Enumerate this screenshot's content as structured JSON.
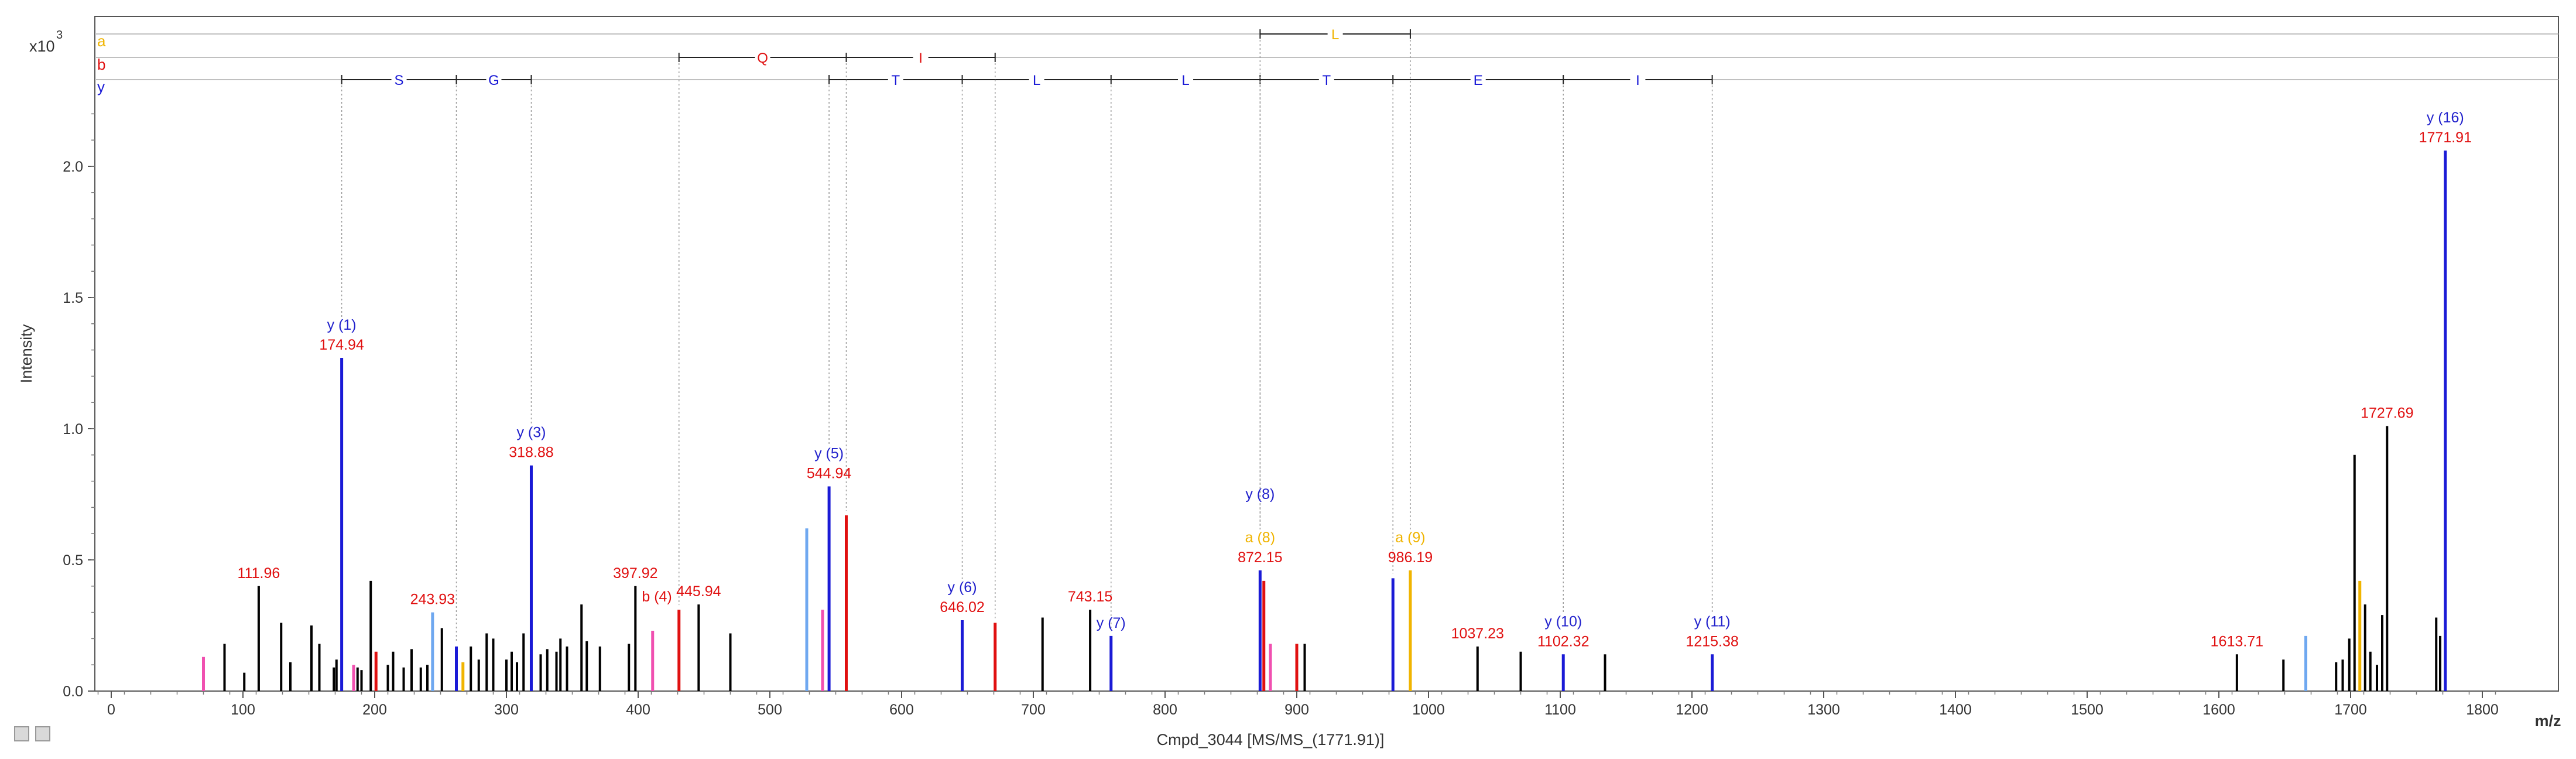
{
  "chart_data": {
    "type": "bar",
    "ylabel": "Intensity",
    "xlabel": "m/z",
    "y_multiplier_label": "x10",
    "y_multiplier_exponent": "3",
    "caption": "Cmpd_3044 [MS/MS_(1771.91)]",
    "xlim": [
      -12,
      1830
    ],
    "ylim": [
      0,
      2.5
    ],
    "x_ticks": [
      0,
      100,
      200,
      300,
      400,
      500,
      600,
      700,
      800,
      900,
      1000,
      1100,
      1200,
      1300,
      1400,
      1500,
      1600,
      1700,
      1800
    ],
    "y_ticks": [
      0.0,
      0.5,
      1.0,
      1.5,
      2.0
    ],
    "y_tick_labels": [
      "0.0",
      "0.5",
      "1.0",
      "1.5",
      "2.0"
    ],
    "colors": {
      "y_ion": "#1a1ad6",
      "b_ion": "#e01010",
      "a_ion": "#f0b400",
      "label_red": "#e01010",
      "other": "#000000",
      "pink": "#f050b0",
      "light_blue": "#6fa8f0",
      "grid": "#c0c0c0"
    },
    "ion_series_rows": [
      {
        "letter": "a",
        "color": "#f0b400"
      },
      {
        "letter": "b",
        "color": "#e01010"
      },
      {
        "letter": "y",
        "color": "#1a1ad6"
      }
    ],
    "sequence_ladders": [
      {
        "row": "a",
        "color": "#f0b400",
        "breaks": [
          872.15,
          986.19
        ],
        "residues": [
          "L"
        ]
      },
      {
        "row": "b",
        "color": "#e01010",
        "breaks": [
          431,
          558,
          671
        ],
        "residues": [
          "Q",
          "I"
        ]
      },
      {
        "row": "y",
        "color": "#1a1ad6",
        "breaks": [
          174.94,
          262,
          318.88
        ],
        "residues": [
          "S",
          "G"
        ]
      },
      {
        "row": "y",
        "color": "#1a1ad6",
        "breaks": [
          544.94,
          646.02,
          759,
          872.15,
          973,
          1102.32,
          1215.38
        ],
        "residues": [
          "T",
          "L",
          "L",
          "T",
          "E",
          "I"
        ]
      }
    ],
    "peaks": [
      {
        "mz": 70,
        "intensity": 0.13,
        "color": "#f050b0"
      },
      {
        "mz": 86,
        "intensity": 0.18,
        "color": "#000000"
      },
      {
        "mz": 101,
        "intensity": 0.07,
        "color": "#000000"
      },
      {
        "mz": 111.96,
        "intensity": 0.4,
        "color": "#000000",
        "label": "111.96",
        "label_color": "#e01010"
      },
      {
        "mz": 129,
        "intensity": 0.26,
        "color": "#000000"
      },
      {
        "mz": 136,
        "intensity": 0.11,
        "color": "#000000"
      },
      {
        "mz": 152,
        "intensity": 0.25,
        "color": "#000000"
      },
      {
        "mz": 158,
        "intensity": 0.18,
        "color": "#000000"
      },
      {
        "mz": 169,
        "intensity": 0.09,
        "color": "#000000"
      },
      {
        "mz": 171,
        "intensity": 0.12,
        "color": "#000000"
      },
      {
        "mz": 174.94,
        "intensity": 1.27,
        "color": "#1a1ad6",
        "label": "174.94",
        "label_color": "#e01010",
        "ion": "y (1)"
      },
      {
        "mz": 184,
        "intensity": 0.1,
        "color": "#f050b0"
      },
      {
        "mz": 187,
        "intensity": 0.09,
        "color": "#000000"
      },
      {
        "mz": 190,
        "intensity": 0.08,
        "color": "#000000"
      },
      {
        "mz": 197,
        "intensity": 0.42,
        "color": "#000000"
      },
      {
        "mz": 201,
        "intensity": 0.15,
        "color": "#e01010"
      },
      {
        "mz": 210,
        "intensity": 0.1,
        "color": "#000000"
      },
      {
        "mz": 214,
        "intensity": 0.15,
        "color": "#000000"
      },
      {
        "mz": 222,
        "intensity": 0.09,
        "color": "#000000"
      },
      {
        "mz": 228,
        "intensity": 0.16,
        "color": "#000000"
      },
      {
        "mz": 235,
        "intensity": 0.09,
        "color": "#000000"
      },
      {
        "mz": 240,
        "intensity": 0.1,
        "color": "#000000"
      },
      {
        "mz": 243.93,
        "intensity": 0.3,
        "color": "#6fa8f0",
        "label": "243.93",
        "label_color": "#e01010"
      },
      {
        "mz": 251,
        "intensity": 0.24,
        "color": "#000000"
      },
      {
        "mz": 262,
        "intensity": 0.17,
        "color": "#1a1ad6"
      },
      {
        "mz": 267,
        "intensity": 0.11,
        "color": "#f0b400"
      },
      {
        "mz": 273,
        "intensity": 0.17,
        "color": "#000000"
      },
      {
        "mz": 279,
        "intensity": 0.12,
        "color": "#000000"
      },
      {
        "mz": 285,
        "intensity": 0.22,
        "color": "#000000"
      },
      {
        "mz": 290,
        "intensity": 0.2,
        "color": "#000000"
      },
      {
        "mz": 300,
        "intensity": 0.12,
        "color": "#000000"
      },
      {
        "mz": 304,
        "intensity": 0.15,
        "color": "#000000"
      },
      {
        "mz": 308,
        "intensity": 0.11,
        "color": "#000000"
      },
      {
        "mz": 313,
        "intensity": 0.22,
        "color": "#000000"
      },
      {
        "mz": 318.88,
        "intensity": 0.86,
        "color": "#1a1ad6",
        "label": "318.88",
        "label_color": "#e01010",
        "ion": "y (3)"
      },
      {
        "mz": 326,
        "intensity": 0.14,
        "color": "#000000"
      },
      {
        "mz": 331,
        "intensity": 0.16,
        "color": "#000000"
      },
      {
        "mz": 338,
        "intensity": 0.15,
        "color": "#000000"
      },
      {
        "mz": 341,
        "intensity": 0.2,
        "color": "#000000"
      },
      {
        "mz": 346,
        "intensity": 0.17,
        "color": "#000000"
      },
      {
        "mz": 357,
        "intensity": 0.33,
        "color": "#000000"
      },
      {
        "mz": 361,
        "intensity": 0.19,
        "color": "#000000"
      },
      {
        "mz": 371,
        "intensity": 0.17,
        "color": "#000000"
      },
      {
        "mz": 393,
        "intensity": 0.18,
        "color": "#000000"
      },
      {
        "mz": 397.92,
        "intensity": 0.4,
        "color": "#000000",
        "label": "397.92",
        "label_color": "#e01010"
      },
      {
        "mz": 411,
        "intensity": 0.23,
        "color": "#f050b0"
      },
      {
        "mz": 431,
        "intensity": 0.31,
        "color": "#e01010",
        "ion": "b (4)",
        "ion_color": "#e01010"
      },
      {
        "mz": 445.94,
        "intensity": 0.33,
        "color": "#000000",
        "label": "445.94",
        "label_color": "#e01010"
      },
      {
        "mz": 470,
        "intensity": 0.22,
        "color": "#000000"
      },
      {
        "mz": 528,
        "intensity": 0.62,
        "color": "#6fa8f0"
      },
      {
        "mz": 540,
        "intensity": 0.31,
        "color": "#f050b0"
      },
      {
        "mz": 544.94,
        "intensity": 0.78,
        "color": "#1a1ad6",
        "label": "544.94",
        "label_color": "#e01010",
        "ion": "y (5)"
      },
      {
        "mz": 558,
        "intensity": 0.67,
        "color": "#e01010"
      },
      {
        "mz": 646.02,
        "intensity": 0.27,
        "color": "#1a1ad6",
        "label": "646.02",
        "label_color": "#e01010",
        "ion": "y (6)"
      },
      {
        "mz": 671,
        "intensity": 0.26,
        "color": "#e01010"
      },
      {
        "mz": 707,
        "intensity": 0.28,
        "color": "#000000"
      },
      {
        "mz": 743.15,
        "intensity": 0.31,
        "color": "#000000",
        "label": "743.15",
        "label_color": "#e01010"
      },
      {
        "mz": 759,
        "intensity": 0.21,
        "color": "#1a1ad6",
        "ion": "y (7)"
      },
      {
        "mz": 872.15,
        "intensity": 0.46,
        "color": "#1a1ad6",
        "label": "872.15",
        "label_color": "#e01010",
        "ion": "y (8)",
        "ion2": "a (8)",
        "ion2_color": "#f0b400"
      },
      {
        "mz": 875,
        "intensity": 0.42,
        "color": "#e01010"
      },
      {
        "mz": 880,
        "intensity": 0.18,
        "color": "#f050b0"
      },
      {
        "mz": 900,
        "intensity": 0.18,
        "color": "#e01010"
      },
      {
        "mz": 906,
        "intensity": 0.18,
        "color": "#000000"
      },
      {
        "mz": 973,
        "intensity": 0.43,
        "color": "#1a1ad6"
      },
      {
        "mz": 986.19,
        "intensity": 0.46,
        "color": "#f0b400",
        "label": "986.19",
        "label_color": "#e01010",
        "ion2": "a (9)",
        "ion2_color": "#f0b400"
      },
      {
        "mz": 1037.23,
        "intensity": 0.17,
        "color": "#000000",
        "label": "1037.23",
        "label_color": "#e01010"
      },
      {
        "mz": 1070,
        "intensity": 0.15,
        "color": "#000000"
      },
      {
        "mz": 1102.32,
        "intensity": 0.14,
        "color": "#1a1ad6",
        "label": "1102.32",
        "label_color": "#e01010",
        "ion": "y (10)"
      },
      {
        "mz": 1134,
        "intensity": 0.14,
        "color": "#000000"
      },
      {
        "mz": 1215.38,
        "intensity": 0.14,
        "color": "#1a1ad6",
        "label": "1215.38",
        "label_color": "#e01010",
        "ion": "y (11)"
      },
      {
        "mz": 1613.71,
        "intensity": 0.14,
        "color": "#000000",
        "label": "1613.71",
        "label_color": "#e01010"
      },
      {
        "mz": 1649,
        "intensity": 0.12,
        "color": "#000000"
      },
      {
        "mz": 1666,
        "intensity": 0.21,
        "color": "#6fa8f0"
      },
      {
        "mz": 1689,
        "intensity": 0.11,
        "color": "#000000"
      },
      {
        "mz": 1694,
        "intensity": 0.12,
        "color": "#000000"
      },
      {
        "mz": 1699,
        "intensity": 0.2,
        "color": "#000000"
      },
      {
        "mz": 1703,
        "intensity": 0.9,
        "color": "#000000"
      },
      {
        "mz": 1707,
        "intensity": 0.42,
        "color": "#f0b400"
      },
      {
        "mz": 1711,
        "intensity": 0.33,
        "color": "#000000"
      },
      {
        "mz": 1715,
        "intensity": 0.15,
        "color": "#000000"
      },
      {
        "mz": 1720,
        "intensity": 0.1,
        "color": "#000000"
      },
      {
        "mz": 1724,
        "intensity": 0.29,
        "color": "#000000"
      },
      {
        "mz": 1727.69,
        "intensity": 1.01,
        "color": "#000000",
        "label": "1727.69",
        "label_color": "#e01010"
      },
      {
        "mz": 1765,
        "intensity": 0.28,
        "color": "#000000"
      },
      {
        "mz": 1768,
        "intensity": 0.21,
        "color": "#000000"
      },
      {
        "mz": 1771.91,
        "intensity": 2.06,
        "color": "#1a1ad6",
        "label": "1771.91",
        "label_color": "#e01010",
        "ion": "y (16)"
      }
    ],
    "grid": false,
    "legend": "none"
  }
}
